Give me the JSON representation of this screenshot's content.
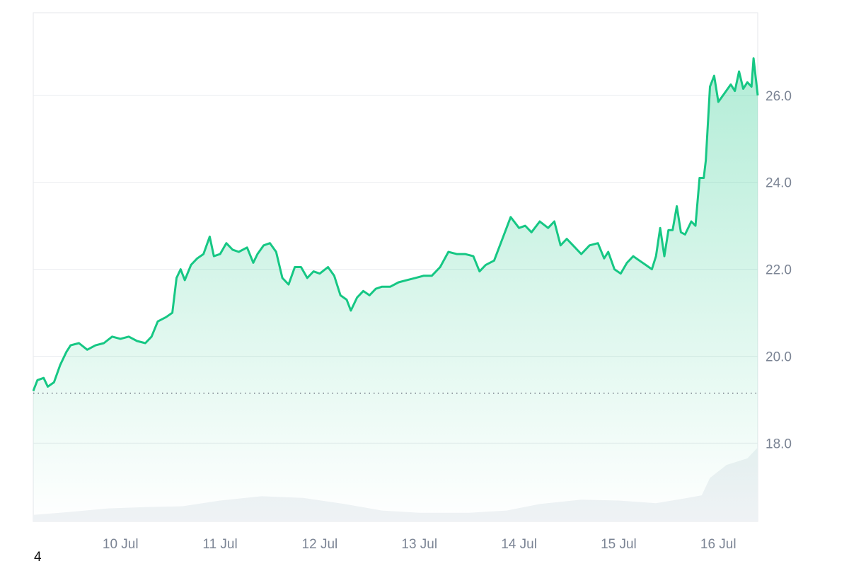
{
  "chart_data": {
    "type": "area",
    "title": "",
    "xlabel": "",
    "ylabel": "",
    "ylim": [
      16.2,
      27.9
    ],
    "y_ticks": [
      "18.0",
      "20.0",
      "22.0",
      "24.0",
      "26.0"
    ],
    "x_ticks": [
      "10 Jul",
      "11 Jul",
      "12 Jul",
      "13 Jul",
      "14 Jul",
      "15 Jul",
      "16 Jul"
    ],
    "x_start": "2024-07-09T03:00",
    "x_end": "2024-07-16T09:30",
    "reference_line": 19.15,
    "colors": {
      "line": "#16c784",
      "grid": "#e9ecef",
      "volume": "#eff2f5",
      "reference": "#6b7280"
    },
    "series": [
      {
        "values": [
          [
            "2024-07-09T03:00",
            19.2
          ],
          [
            "2024-07-09T04:00",
            19.45
          ],
          [
            "2024-07-09T05:30",
            19.5
          ],
          [
            "2024-07-09T06:30",
            19.3
          ],
          [
            "2024-07-09T08:00",
            19.4
          ],
          [
            "2024-07-09T09:30",
            19.8
          ],
          [
            "2024-07-09T11:00",
            20.1
          ],
          [
            "2024-07-09T12:00",
            20.25
          ],
          [
            "2024-07-09T14:00",
            20.3
          ],
          [
            "2024-07-09T16:00",
            20.15
          ],
          [
            "2024-07-09T18:00",
            20.25
          ],
          [
            "2024-07-09T20:00",
            20.3
          ],
          [
            "2024-07-09T22:00",
            20.45
          ],
          [
            "2024-07-10T00:00",
            20.4
          ],
          [
            "2024-07-10T02:00",
            20.45
          ],
          [
            "2024-07-10T04:00",
            20.35
          ],
          [
            "2024-07-10T06:00",
            20.3
          ],
          [
            "2024-07-10T07:30",
            20.45
          ],
          [
            "2024-07-10T09:00",
            20.8
          ],
          [
            "2024-07-10T11:00",
            20.9
          ],
          [
            "2024-07-10T12:30",
            21.0
          ],
          [
            "2024-07-10T13:30",
            21.8
          ],
          [
            "2024-07-10T14:30",
            22.0
          ],
          [
            "2024-07-10T15:30",
            21.75
          ],
          [
            "2024-07-10T17:00",
            22.1
          ],
          [
            "2024-07-10T18:30",
            22.25
          ],
          [
            "2024-07-10T20:00",
            22.35
          ],
          [
            "2024-07-10T21:30",
            22.75
          ],
          [
            "2024-07-10T22:30",
            22.3
          ],
          [
            "2024-07-11T00:00",
            22.35
          ],
          [
            "2024-07-11T01:30",
            22.6
          ],
          [
            "2024-07-11T03:00",
            22.45
          ],
          [
            "2024-07-11T04:30",
            22.4
          ],
          [
            "2024-07-11T06:30",
            22.5
          ],
          [
            "2024-07-11T08:00",
            22.15
          ],
          [
            "2024-07-11T09:00",
            22.35
          ],
          [
            "2024-07-11T10:30",
            22.55
          ],
          [
            "2024-07-11T12:00",
            22.6
          ],
          [
            "2024-07-11T13:30",
            22.4
          ],
          [
            "2024-07-11T15:00",
            21.8
          ],
          [
            "2024-07-11T16:30",
            21.65
          ],
          [
            "2024-07-11T18:00",
            22.05
          ],
          [
            "2024-07-11T19:30",
            22.05
          ],
          [
            "2024-07-11T21:00",
            21.8
          ],
          [
            "2024-07-11T22:30",
            21.95
          ],
          [
            "2024-07-12T00:00",
            21.9
          ],
          [
            "2024-07-12T02:00",
            22.05
          ],
          [
            "2024-07-12T03:30",
            21.85
          ],
          [
            "2024-07-12T05:00",
            21.4
          ],
          [
            "2024-07-12T06:30",
            21.3
          ],
          [
            "2024-07-12T07:30",
            21.05
          ],
          [
            "2024-07-12T09:00",
            21.35
          ],
          [
            "2024-07-12T10:30",
            21.5
          ],
          [
            "2024-07-12T12:00",
            21.4
          ],
          [
            "2024-07-12T13:30",
            21.55
          ],
          [
            "2024-07-12T15:00",
            21.6
          ],
          [
            "2024-07-12T17:00",
            21.6
          ],
          [
            "2024-07-12T19:00",
            21.7
          ],
          [
            "2024-07-12T21:00",
            21.75
          ],
          [
            "2024-07-12T23:00",
            21.8
          ],
          [
            "2024-07-13T01:00",
            21.85
          ],
          [
            "2024-07-13T03:00",
            21.85
          ],
          [
            "2024-07-13T05:00",
            22.05
          ],
          [
            "2024-07-13T07:00",
            22.4
          ],
          [
            "2024-07-13T09:00",
            22.35
          ],
          [
            "2024-07-13T11:00",
            22.35
          ],
          [
            "2024-07-13T13:00",
            22.3
          ],
          [
            "2024-07-13T14:30",
            21.95
          ],
          [
            "2024-07-13T16:00",
            22.1
          ],
          [
            "2024-07-13T18:00",
            22.2
          ],
          [
            "2024-07-13T20:00",
            22.7
          ],
          [
            "2024-07-13T22:00",
            23.2
          ],
          [
            "2024-07-14T00:00",
            22.95
          ],
          [
            "2024-07-14T01:30",
            23.0
          ],
          [
            "2024-07-14T03:00",
            22.85
          ],
          [
            "2024-07-14T05:00",
            23.1
          ],
          [
            "2024-07-14T07:00",
            22.95
          ],
          [
            "2024-07-14T08:30",
            23.1
          ],
          [
            "2024-07-14T10:00",
            22.55
          ],
          [
            "2024-07-14T11:30",
            22.7
          ],
          [
            "2024-07-14T13:00",
            22.55
          ],
          [
            "2024-07-14T15:00",
            22.35
          ],
          [
            "2024-07-14T17:00",
            22.55
          ],
          [
            "2024-07-14T19:00",
            22.6
          ],
          [
            "2024-07-14T20:30",
            22.25
          ],
          [
            "2024-07-14T21:30",
            22.4
          ],
          [
            "2024-07-14T23:00",
            22.0
          ],
          [
            "2024-07-15T00:30",
            21.9
          ],
          [
            "2024-07-15T02:00",
            22.15
          ],
          [
            "2024-07-15T03:30",
            22.3
          ],
          [
            "2024-07-15T05:00",
            22.2
          ],
          [
            "2024-07-15T06:30",
            22.1
          ],
          [
            "2024-07-15T08:00",
            22.0
          ],
          [
            "2024-07-15T09:00",
            22.3
          ],
          [
            "2024-07-15T10:00",
            22.95
          ],
          [
            "2024-07-15T11:00",
            22.3
          ],
          [
            "2024-07-15T12:00",
            22.9
          ],
          [
            "2024-07-15T13:00",
            22.9
          ],
          [
            "2024-07-15T14:00",
            23.45
          ],
          [
            "2024-07-15T15:00",
            22.85
          ],
          [
            "2024-07-15T16:00",
            22.8
          ],
          [
            "2024-07-15T17:30",
            23.1
          ],
          [
            "2024-07-15T18:30",
            23.0
          ],
          [
            "2024-07-15T19:30",
            24.1
          ],
          [
            "2024-07-15T20:30",
            24.1
          ],
          [
            "2024-07-15T21:00",
            24.5
          ],
          [
            "2024-07-15T22:00",
            26.2
          ],
          [
            "2024-07-15T23:00",
            26.45
          ],
          [
            "2024-07-16T00:00",
            25.85
          ],
          [
            "2024-07-16T01:30",
            26.05
          ],
          [
            "2024-07-16T03:00",
            26.25
          ],
          [
            "2024-07-16T04:00",
            26.1
          ],
          [
            "2024-07-16T05:00",
            26.55
          ],
          [
            "2024-07-16T06:00",
            26.15
          ],
          [
            "2024-07-16T07:00",
            26.3
          ],
          [
            "2024-07-16T08:00",
            26.2
          ],
          [
            "2024-07-16T08:30",
            26.85
          ],
          [
            "2024-07-16T09:30",
            26.0
          ]
        ]
      }
    ],
    "volume": [
      [
        "2024-07-09T03:00",
        16.35
      ],
      [
        "2024-07-09T12:00",
        16.42
      ],
      [
        "2024-07-09T21:00",
        16.5
      ],
      [
        "2024-07-10T06:00",
        16.53
      ],
      [
        "2024-07-10T15:00",
        16.55
      ],
      [
        "2024-07-11T00:00",
        16.68
      ],
      [
        "2024-07-11T10:00",
        16.78
      ],
      [
        "2024-07-11T20:00",
        16.74
      ],
      [
        "2024-07-12T06:00",
        16.6
      ],
      [
        "2024-07-12T15:00",
        16.45
      ],
      [
        "2024-07-13T00:00",
        16.4
      ],
      [
        "2024-07-13T12:00",
        16.4
      ],
      [
        "2024-07-13T21:00",
        16.45
      ],
      [
        "2024-07-14T05:00",
        16.6
      ],
      [
        "2024-07-14T15:00",
        16.7
      ],
      [
        "2024-07-15T00:00",
        16.68
      ],
      [
        "2024-07-15T09:00",
        16.62
      ],
      [
        "2024-07-15T16:00",
        16.73
      ],
      [
        "2024-07-15T20:00",
        16.8
      ],
      [
        "2024-07-15T22:00",
        17.2
      ],
      [
        "2024-07-16T02:00",
        17.5
      ],
      [
        "2024-07-16T07:00",
        17.65
      ],
      [
        "2024-07-16T09:30",
        17.9
      ]
    ]
  },
  "footer": {
    "corner_label": "4"
  }
}
